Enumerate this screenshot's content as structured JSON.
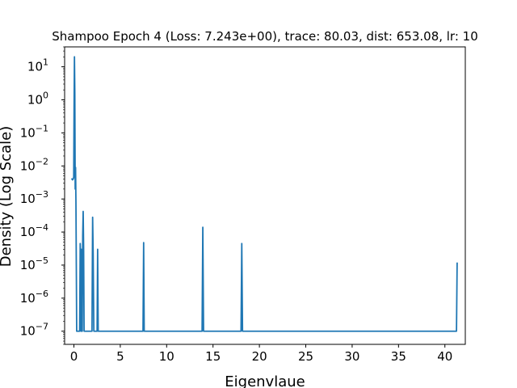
{
  "chart_data": {
    "type": "line",
    "title": "Shampoo Epoch 4 (Loss: 7.243e+00), trace: 80.03, dist: 653.08, lr: 10",
    "xlabel": "Eigenvlaue",
    "ylabel": "Density (Log Scale)",
    "xlim": [
      -1.0,
      42.2
    ],
    "ylim": [
      4e-08,
      40
    ],
    "yscale": "log",
    "grid": false,
    "x_ticks": [
      0,
      5,
      10,
      15,
      20,
      25,
      30,
      35,
      40
    ],
    "x_tick_labels": [
      "0",
      "5",
      "10",
      "15",
      "20",
      "25",
      "30",
      "35",
      "40"
    ],
    "y_tick_exponents": [
      -7,
      -6,
      -5,
      -4,
      -3,
      -2,
      -1,
      0,
      1
    ],
    "series": [
      {
        "color": "#1f77b4",
        "x": [
          -0.25,
          -0.15,
          -0.08,
          -0.02,
          0.02,
          0.06,
          0.1,
          0.14,
          0.18,
          0.22,
          0.26,
          0.3,
          0.36,
          0.45,
          0.55,
          0.62,
          0.68,
          0.72,
          0.76,
          0.8,
          0.84,
          0.9,
          0.95,
          1.0,
          1.05,
          1.1,
          1.15,
          1.25,
          1.5,
          1.8,
          1.95,
          2.02,
          2.08,
          2.15,
          2.22,
          2.3,
          2.4,
          2.5,
          2.56,
          2.62,
          2.7,
          2.8,
          3.5,
          5.0,
          7.0,
          7.45,
          7.52,
          7.58,
          7.65,
          8.0,
          10.0,
          12.0,
          13.6,
          13.82,
          13.9,
          13.98,
          14.2,
          16.0,
          17.8,
          18.02,
          18.1,
          18.18,
          18.4,
          20.0,
          25.0,
          30.0,
          35.0,
          40.0,
          41.1,
          41.25,
          41.32
        ],
        "y": [
          0.0042,
          0.0038,
          0.004,
          0.0045,
          0.6,
          20,
          1.5,
          0.002,
          0.009,
          0.0008,
          1e-05,
          1e-07,
          1e-07,
          1e-07,
          1e-07,
          1e-07,
          4.5e-05,
          2e-05,
          1e-07,
          3e-05,
          1e-07,
          1e-07,
          8e-05,
          0.00042,
          3e-05,
          1e-07,
          1e-07,
          1e-07,
          1e-07,
          1e-07,
          1e-07,
          0.00028,
          2e-05,
          1e-07,
          1e-07,
          1e-07,
          1e-07,
          1e-07,
          3e-05,
          1e-07,
          1e-07,
          1e-07,
          1e-07,
          1e-07,
          1e-07,
          1e-07,
          4.8e-05,
          1e-07,
          1e-07,
          1e-07,
          1e-07,
          1e-07,
          1e-07,
          1e-07,
          0.00014,
          1e-07,
          1e-07,
          1e-07,
          1e-07,
          1e-07,
          4.5e-05,
          1e-07,
          1e-07,
          1e-07,
          1e-07,
          1e-07,
          1e-07,
          1e-07,
          1e-07,
          1e-07,
          1.2e-05
        ]
      }
    ]
  }
}
